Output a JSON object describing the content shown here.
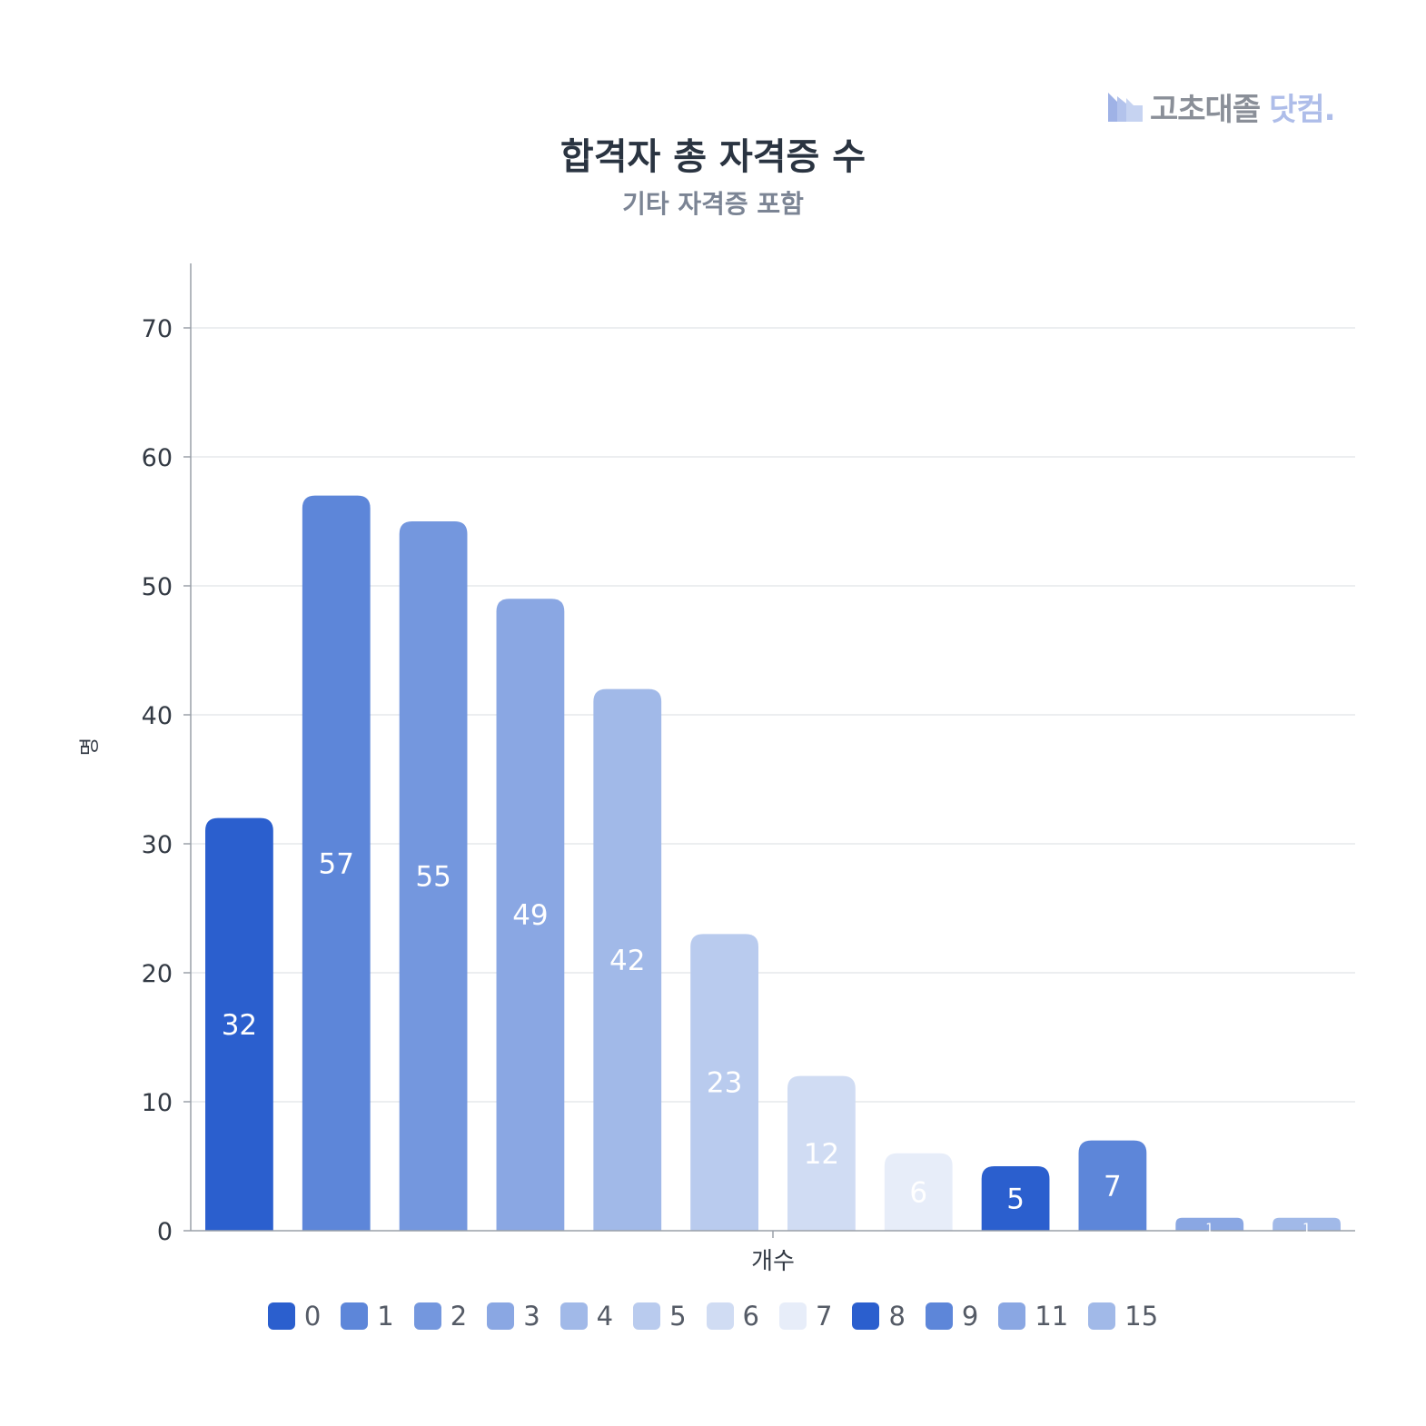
{
  "logo": {
    "text": "고초대졸",
    "accent": "닷컴.",
    "icon": "factory-icon",
    "icon_color": "#aebde9",
    "text_color": "#8a8f98"
  },
  "chart_data": {
    "type": "bar",
    "title": "합격자 총 자격증 수",
    "subtitle": "기타 자격증 포함",
    "xlabel": "개수",
    "ylabel": "명",
    "ylim": [
      0,
      75
    ],
    "yticks": [
      0,
      10,
      20,
      30,
      40,
      50,
      60,
      70
    ],
    "grid": true,
    "legend_position": "bottom",
    "categories": [
      "0",
      "1",
      "2",
      "3",
      "4",
      "5",
      "6",
      "7",
      "8",
      "9",
      "11",
      "15"
    ],
    "values": [
      32,
      57,
      55,
      49,
      42,
      23,
      12,
      6,
      5,
      7,
      1,
      1
    ],
    "data_labels": [
      "32",
      "57",
      "55",
      "49",
      "42",
      "23",
      "12",
      "6",
      "5",
      "7",
      "1",
      "1"
    ],
    "colors": [
      "#2b5fce",
      "#5d86d9",
      "#7497de",
      "#8aa7e3",
      "#a1b9e8",
      "#b9cbee",
      "#d0dcf3",
      "#e7edf9",
      "#2b5fce",
      "#5d86d9",
      "#8aa7e3",
      "#a1b9e8"
    ],
    "label_colors": [
      "#ffffff",
      "#ffffff",
      "#ffffff",
      "#ffffff",
      "#ffffff",
      "#ffffff",
      "#ffffff",
      "#ffffff",
      "#ffffff",
      "#ffffff",
      "#ffffff",
      "#ffffff"
    ]
  }
}
